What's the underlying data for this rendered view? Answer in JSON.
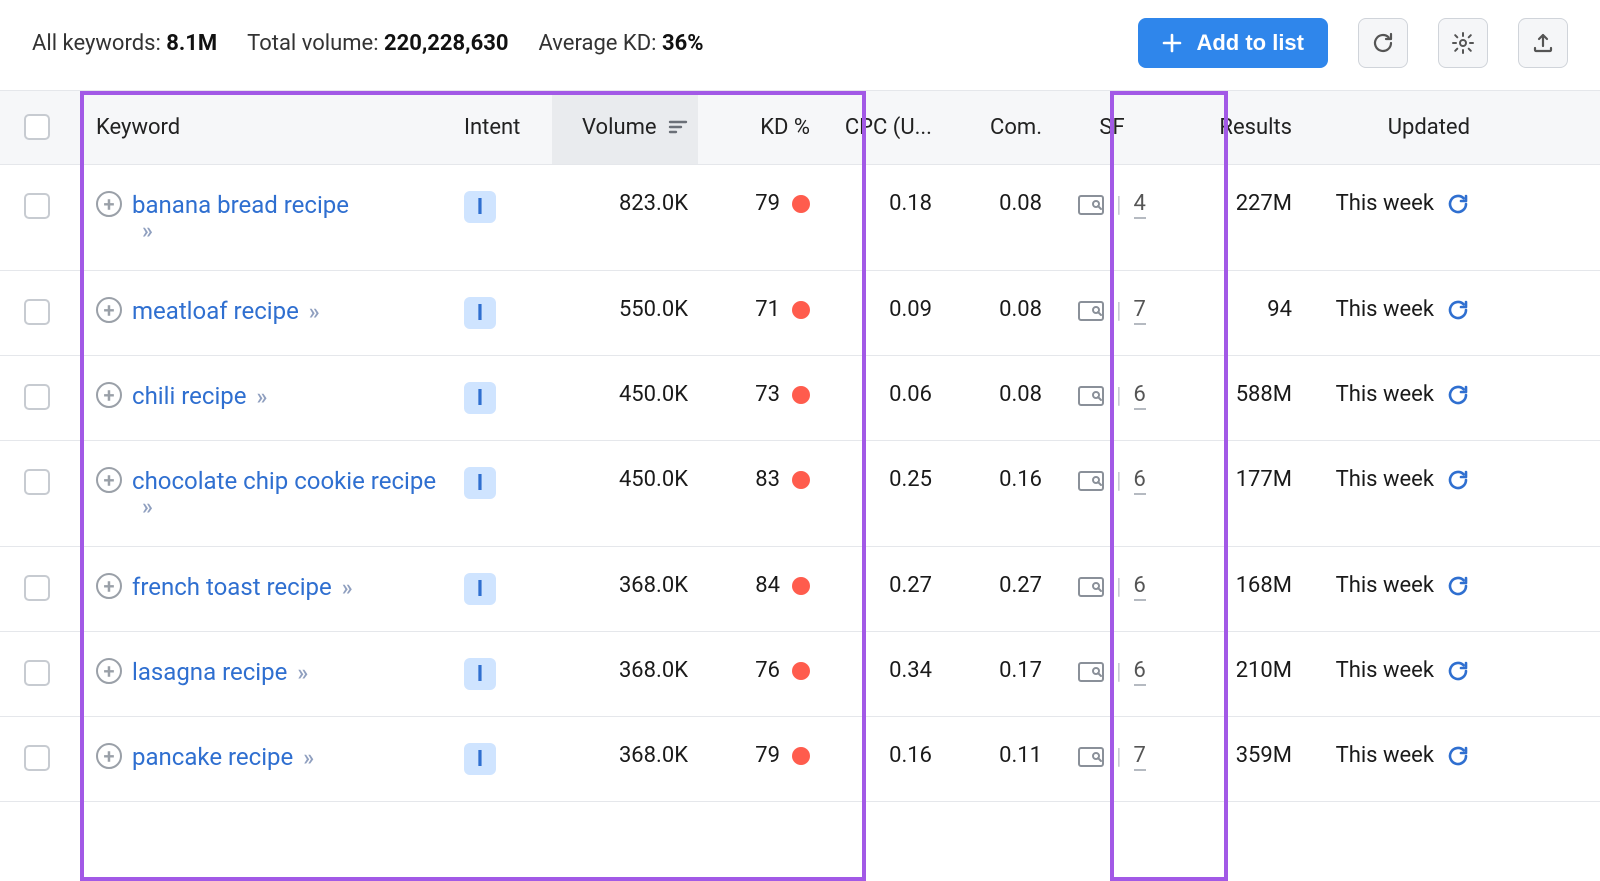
{
  "colors": {
    "accent_blue": "#2f86eb",
    "link_blue": "#2f6fd0",
    "kd_dot": "#ff5c4d",
    "intent_bg": "#cfe4ff",
    "intent_fg": "#2f6fd0",
    "highlight_border": "#a259e6",
    "header_bg": "#f6f7f9",
    "sorted_col_bg": "#e9ebee",
    "border": "#e5e7eb"
  },
  "header": {
    "all_keywords_label": "All keywords: ",
    "all_keywords_value": "8.1M",
    "total_volume_label": "Total volume: ",
    "total_volume_value": "220,228,630",
    "average_kd_label": "Average KD: ",
    "average_kd_value": "36%",
    "add_to_list_label": "Add to list"
  },
  "columns": {
    "keyword": "Keyword",
    "intent": "Intent",
    "volume": "Volume",
    "kd": "KD %",
    "cpc": "CPC (U...",
    "com": "Com.",
    "sf": "SF",
    "results": "Results",
    "updated": "Updated"
  },
  "intent_letter": "I",
  "updated_text": "This week",
  "rows": [
    {
      "keyword": "banana bread recipe",
      "volume": "823.0K",
      "kd": "79",
      "cpc": "0.18",
      "com": "0.08",
      "sf": "4",
      "results": "227M",
      "two_line": true
    },
    {
      "keyword": "meatloaf recipe",
      "volume": "550.0K",
      "kd": "71",
      "cpc": "0.09",
      "com": "0.08",
      "sf": "7",
      "results": "94",
      "two_line": false
    },
    {
      "keyword": "chili recipe",
      "volume": "450.0K",
      "kd": "73",
      "cpc": "0.06",
      "com": "0.08",
      "sf": "6",
      "results": "588M",
      "two_line": false
    },
    {
      "keyword": "chocolate chip cookie recipe",
      "volume": "450.0K",
      "kd": "83",
      "cpc": "0.25",
      "com": "0.16",
      "sf": "6",
      "results": "177M",
      "two_line": true
    },
    {
      "keyword": "french toast recipe",
      "volume": "368.0K",
      "kd": "84",
      "cpc": "0.27",
      "com": "0.27",
      "sf": "6",
      "results": "168M",
      "two_line": false
    },
    {
      "keyword": "lasagna recipe",
      "volume": "368.0K",
      "kd": "76",
      "cpc": "0.34",
      "com": "0.17",
      "sf": "6",
      "results": "210M",
      "two_line": false
    },
    {
      "keyword": "pancake recipe",
      "volume": "368.0K",
      "kd": "79",
      "cpc": "0.16",
      "com": "0.11",
      "sf": "7",
      "results": "359M",
      "two_line": false
    }
  ]
}
